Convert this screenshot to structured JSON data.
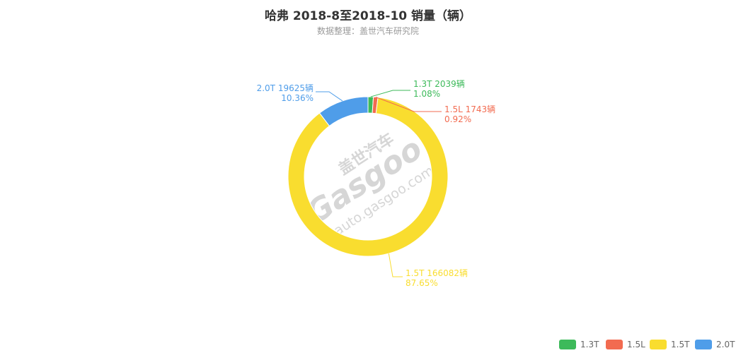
{
  "title": "哈弗 2018-8至2018-10 销量（辆）",
  "subtitle": "数据整理：盖世汽车研究院",
  "watermark": {
    "brand_cn": "盖世汽车",
    "brand_en": "Gasgoo",
    "url": "auto.gasgoo.com"
  },
  "chart_data": {
    "type": "pie",
    "donut": true,
    "unit": "辆",
    "slices": [
      {
        "name": "1.3T",
        "value": 2039,
        "percent": "1.08%",
        "label": "1.3T 2039辆",
        "color": "#3dba5a"
      },
      {
        "name": "1.5L",
        "value": 1743,
        "percent": "0.92%",
        "label": "1.5L 1743辆",
        "color": "#f26b50"
      },
      {
        "name": "1.5T",
        "value": 166082,
        "percent": "87.65%",
        "label": "1.5T 166082辆",
        "color": "#f9dd2f"
      },
      {
        "name": "2.0T",
        "value": 19625,
        "percent": "10.36%",
        "label": "2.0T 19625辆",
        "color": "#4f9de9"
      }
    ],
    "legend_position": "bottom-right"
  }
}
